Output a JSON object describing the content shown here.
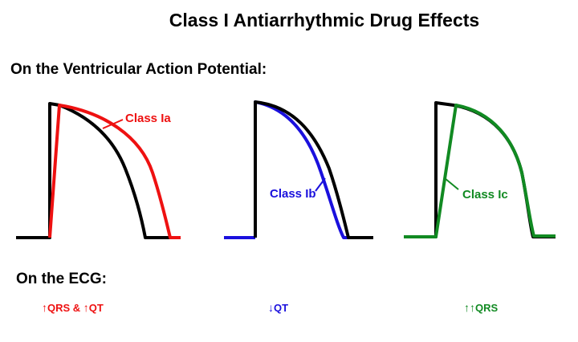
{
  "title": "Class I Antiarrhythmic Drug Effects",
  "subtitle": "On the Ventricular Action Potential:",
  "panels": [
    {
      "label": "Class Ia",
      "color": "#ee1111"
    },
    {
      "label": "Class Ib",
      "color": "#1a10dd"
    },
    {
      "label": "Class Ic",
      "color": "#118a22"
    }
  ],
  "ecg": {
    "heading": "On the ECG:",
    "effects": [
      {
        "text": "QRS & QT",
        "arrows": "up",
        "color": "#ee1111",
        "parts": [
          {
            "arrow": "↑",
            "text": "QRS & "
          },
          {
            "arrow": "↑",
            "text": "QT"
          }
        ]
      },
      {
        "text": "QT",
        "arrows": "down",
        "color": "#1a10dd",
        "parts": [
          {
            "arrow": "↓",
            "text": "QT"
          }
        ]
      },
      {
        "text": "QRS",
        "arrows": "double-up",
        "color": "#118a22",
        "parts": [
          {
            "arrow": "↑↑",
            "text": "QRS"
          }
        ]
      }
    ]
  }
}
